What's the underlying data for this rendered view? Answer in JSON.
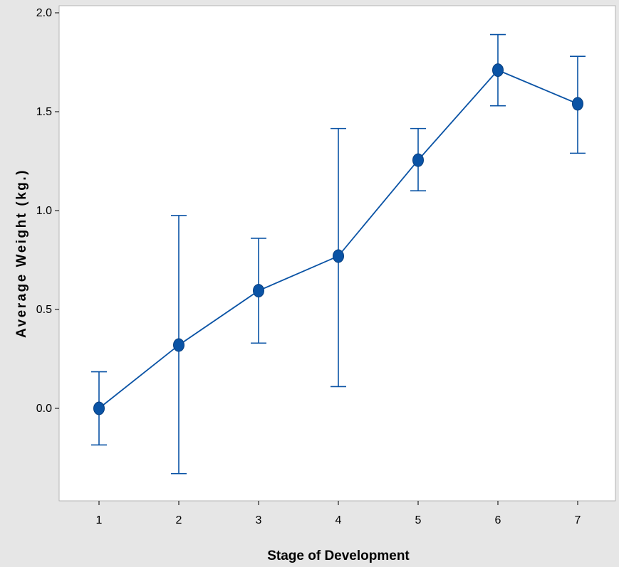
{
  "chart_data": {
    "type": "line",
    "title": "",
    "xlabel": "Stage of Development",
    "ylabel": "Average Weight (kg.)",
    "x": [
      1,
      2,
      3,
      4,
      5,
      6,
      7
    ],
    "x_ticks": [
      "1",
      "2",
      "3",
      "4",
      "5",
      "6",
      "7"
    ],
    "y_ticks": [
      "0.0",
      "0.5",
      "1.0",
      "1.5",
      "2.0"
    ],
    "ylim": [
      -0.42,
      2.0
    ],
    "xlim": [
      0.5,
      7.5
    ],
    "series": [
      {
        "values": [
          0.0,
          0.32,
          0.595,
          0.77,
          1.255,
          1.71,
          1.54
        ],
        "error_lower": [
          -0.185,
          -0.33,
          0.33,
          0.11,
          1.1,
          1.53,
          1.29
        ],
        "error_upper": [
          0.185,
          0.975,
          0.86,
          1.415,
          1.415,
          1.89,
          1.78
        ],
        "color": "#0a53a5"
      }
    ],
    "grid": false,
    "legend": "none",
    "colors": {
      "background": "#e6e6e6",
      "plot_area": "#ffffff",
      "series": "#0a53a5"
    }
  }
}
